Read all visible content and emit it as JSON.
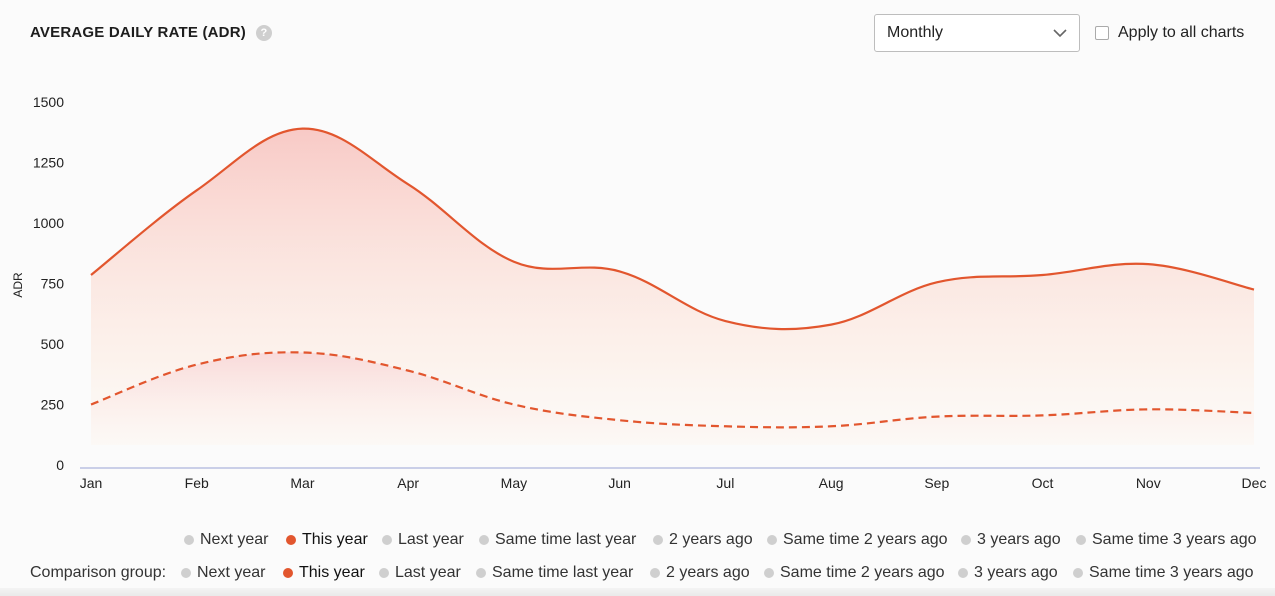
{
  "header": {
    "title": "AVERAGE DAILY RATE (ADR)",
    "help_icon": "?"
  },
  "controls": {
    "period_select": {
      "value": "Monthly"
    },
    "apply_all_label": "Apply to all charts",
    "apply_all_checked": false
  },
  "chart_data": {
    "type": "area",
    "title": "AVERAGE DAILY RATE (ADR)",
    "xlabel": "",
    "ylabel": "ADR",
    "ylim": [
      0,
      1500
    ],
    "yticks": [
      0,
      250,
      500,
      750,
      1000,
      1250,
      1500
    ],
    "categories": [
      "Jan",
      "Feb",
      "Mar",
      "Apr",
      "May",
      "Jun",
      "Jul",
      "Aug",
      "Sep",
      "Oct",
      "Nov",
      "Dec"
    ],
    "series": [
      {
        "name": "This year",
        "style": "solid",
        "color": "#e2562e",
        "values": [
          785,
          1135,
          1390,
          1160,
          840,
          800,
          595,
          580,
          755,
          785,
          830,
          725
        ]
      },
      {
        "name": "This year (Comparison group)",
        "style": "dashed",
        "color": "#e2562e",
        "values": [
          250,
          415,
          465,
          390,
          250,
          185,
          160,
          160,
          200,
          205,
          230,
          215
        ]
      }
    ],
    "grid": false
  },
  "legend": {
    "items": [
      {
        "label": "Next year",
        "active": false
      },
      {
        "label": "This year",
        "active": true
      },
      {
        "label": "Last year",
        "active": false
      },
      {
        "label": "Same time last year",
        "active": false
      },
      {
        "label": "2 years ago",
        "active": false
      },
      {
        "label": "Same time 2 years ago",
        "active": false
      },
      {
        "label": "3 years ago",
        "active": false
      },
      {
        "label": "Same time 3 years ago",
        "active": false
      }
    ]
  },
  "comparison_legend": {
    "label": "Comparison group:",
    "items": [
      {
        "label": "Next year",
        "active": false
      },
      {
        "label": "This year",
        "active": true
      },
      {
        "label": "Last year",
        "active": false
      },
      {
        "label": "Same time last year",
        "active": false
      },
      {
        "label": "2 years ago",
        "active": false
      },
      {
        "label": "Same time 2 years ago",
        "active": false
      },
      {
        "label": "3 years ago",
        "active": false
      },
      {
        "label": "Same time 3 years ago",
        "active": false
      }
    ]
  },
  "colors": {
    "accent": "#e2562e",
    "inactive_dot": "#cfcfcf",
    "axis": "#9aa3d6"
  }
}
